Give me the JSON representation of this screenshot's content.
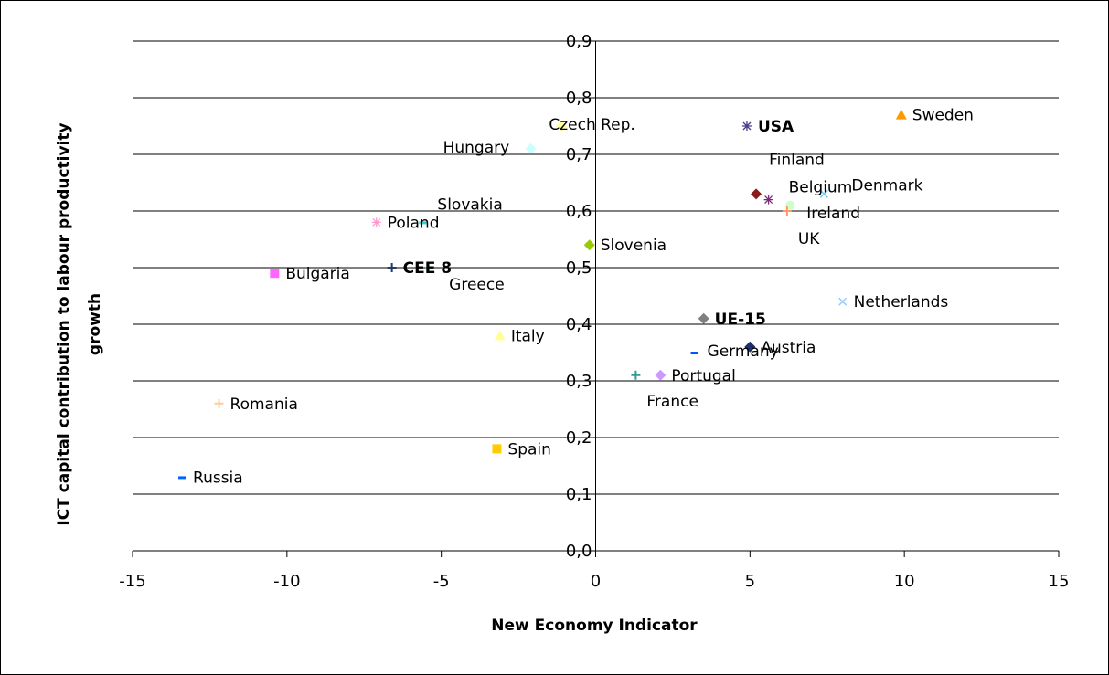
{
  "chart_data": {
    "type": "scatter",
    "xlabel": "New Economy Indicator",
    "ylabel": [
      "ICT capital contribution to labour productivity",
      "growth"
    ],
    "xlim": [
      -15,
      15
    ],
    "ylim": [
      0.0,
      0.9
    ],
    "x_ticks": [
      "-15",
      "-10",
      "-5",
      "0",
      "5",
      "10",
      "15"
    ],
    "y_ticks": [
      "0,0",
      "0,1",
      "0,2",
      "0,3",
      "0,4",
      "0,5",
      "0,6",
      "0,7",
      "0,8",
      "0,9"
    ],
    "grid": "horizontal",
    "points": [
      {
        "label": "Sweden",
        "x": 9.9,
        "y": 0.77,
        "marker": "triangle",
        "color": "#ff9900",
        "bold": false
      },
      {
        "label": "USA",
        "x": 4.9,
        "y": 0.75,
        "marker": "star",
        "color": "#4b3c8c",
        "bold": true
      },
      {
        "label": "Hungary",
        "x": -2.1,
        "y": 0.71,
        "marker": "diamond",
        "color": "#ccffff",
        "bold": false
      },
      {
        "label": "Czech Rep.",
        "x": -1.1,
        "y": 0.75,
        "marker": "diamond",
        "color": "#ffff99",
        "bold": false
      },
      {
        "label": "Finland",
        "x": 5.2,
        "y": 0.63,
        "marker": "diamond",
        "color": "#8b1a1a",
        "bold": false
      },
      {
        "label": "Belgium",
        "x": 5.6,
        "y": 0.62,
        "marker": "star",
        "color": "#7a2b7a",
        "bold": false
      },
      {
        "label": "Denmark",
        "x": 7.4,
        "y": 0.63,
        "marker": "x",
        "color": "#66ccff",
        "bold": false
      },
      {
        "label": "Ireland",
        "x": 6.3,
        "y": 0.61,
        "marker": "circle",
        "color": "#ccffcc",
        "bold": false
      },
      {
        "label": "UK",
        "x": 6.2,
        "y": 0.6,
        "marker": "plus",
        "color": "#ff9966",
        "bold": false
      },
      {
        "label": "Slovakia",
        "x": -5.6,
        "y": 0.58,
        "marker": "dash",
        "color": "#33cccc",
        "bold": false
      },
      {
        "label": "Poland",
        "x": -7.1,
        "y": 0.58,
        "marker": "star",
        "color": "#ff99cc",
        "bold": false
      },
      {
        "label": "Slovenia",
        "x": -0.2,
        "y": 0.54,
        "marker": "diamond",
        "color": "#99cc00",
        "bold": false
      },
      {
        "label": "CEE 8",
        "x": -6.6,
        "y": 0.5,
        "marker": "plus",
        "color": "#1f3a6b",
        "bold": true
      },
      {
        "label": "Greece",
        "x": -5.4,
        "y": 0.5,
        "marker": "dash",
        "color": "#33ccff",
        "bold": false
      },
      {
        "label": "Bulgaria",
        "x": -10.4,
        "y": 0.49,
        "marker": "square",
        "color": "#ff66ff",
        "bold": false
      },
      {
        "label": "Netherlands",
        "x": 8.0,
        "y": 0.44,
        "marker": "x",
        "color": "#99ccff",
        "bold": false
      },
      {
        "label": "UE-15",
        "x": 3.5,
        "y": 0.41,
        "marker": "diamond",
        "color": "#808080",
        "bold": true
      },
      {
        "label": "Italy",
        "x": -3.1,
        "y": 0.38,
        "marker": "triangle",
        "color": "#ffff99",
        "bold": false
      },
      {
        "label": "Austria",
        "x": 5.0,
        "y": 0.36,
        "marker": "diamond",
        "color": "#1f2f6b",
        "bold": false
      },
      {
        "label": "Germany",
        "x": 3.2,
        "y": 0.35,
        "marker": "dash",
        "color": "#0055ff",
        "bold": false
      },
      {
        "label": "Portugal",
        "x": 2.1,
        "y": 0.31,
        "marker": "diamond",
        "color": "#cc99ff",
        "bold": false
      },
      {
        "label": "France",
        "x": 1.3,
        "y": 0.31,
        "marker": "plus",
        "color": "#339999",
        "bold": false
      },
      {
        "label": "Romania",
        "x": -12.2,
        "y": 0.26,
        "marker": "plus",
        "color": "#ffcc99",
        "bold": false
      },
      {
        "label": "Spain",
        "x": -3.2,
        "y": 0.18,
        "marker": "square",
        "color": "#ffcc00",
        "bold": false
      },
      {
        "label": "Russia",
        "x": -13.4,
        "y": 0.13,
        "marker": "dash",
        "color": "#0066ff",
        "bold": false
      }
    ]
  }
}
